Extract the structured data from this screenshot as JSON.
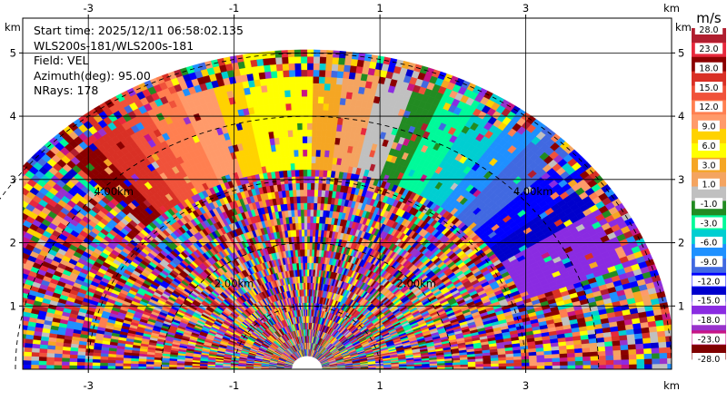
{
  "info": {
    "start_time": "Start time: 2025/12/11 06:58:02.135",
    "instrument": "WLS200s-181/WLS200s-181",
    "field": "Field: VEL",
    "azimuth": "Azimuth(deg): 95.00",
    "nrays": "NRays: 178"
  },
  "chart_data": {
    "type": "heatmap",
    "projection": "rhi-polar-sector",
    "xunit_label": "km",
    "yunit_label": "km",
    "xlim": [
      -3.9,
      5.0
    ],
    "ylim": [
      0,
      5.55
    ],
    "x_ticks": [
      -3,
      -1,
      1,
      3
    ],
    "y_ticks": [
      1,
      2,
      3,
      4,
      5
    ],
    "range_rings_km": [
      1,
      2,
      3,
      4,
      5
    ],
    "ring_labels": [
      {
        "text": "2.00km",
        "x": -1.0,
        "y": 1.3
      },
      {
        "text": "2.00km",
        "x": 1.5,
        "y": 1.3
      },
      {
        "text": "4.00km",
        "x": -2.65,
        "y": 2.75
      },
      {
        "text": "4.00km",
        "x": 3.1,
        "y": 2.75
      }
    ],
    "max_range_km": 5.05,
    "n_rays": 178,
    "grid": true,
    "colorbar": {
      "unit": "m/s",
      "tick_labels": [
        "28.0",
        "23.0",
        "18.0",
        "15.0",
        "12.0",
        "9.0",
        "6.0",
        "3.0",
        "1.0",
        "-1.0",
        "-3.0",
        "-6.0",
        "-9.0",
        "-12.0",
        "-15.0",
        "-18.0",
        "-23.0",
        "-28.0"
      ],
      "colors": [
        "#b01e2f",
        "#e8283c",
        "#8b0000",
        "#d93025",
        "#f0523a",
        "#ff7f50",
        "#ff9a6a",
        "#ffd200",
        "#ffff00",
        "#f5a623",
        "#f4a460",
        "#c0c0c0",
        "#228b22",
        "#00fa9a",
        "#00ced1",
        "#1e90ff",
        "#4169e1",
        "#0000ff",
        "#0000cd",
        "#8a2be2",
        "#9932cc",
        "#c71585",
        "#800000"
      ]
    },
    "band_color_indices": [
      19,
      19,
      18,
      17,
      16,
      15,
      14,
      13,
      12,
      11,
      10,
      9,
      8,
      8,
      7,
      6,
      5,
      4,
      3,
      2
    ]
  }
}
